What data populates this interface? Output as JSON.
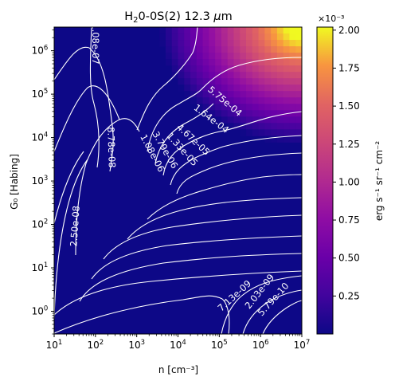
{
  "chart_data": {
    "type": "heatmap",
    "title": "H₂O-0S(2) 12.3 μm",
    "title_prefix": "H",
    "title_sub": "2",
    "title_suffix": "0-0S(2) 12.3 ",
    "title_mu": "μ",
    "title_unit": "m",
    "xlabel": "n [cm⁻³]",
    "ylabel": "G₀ [Habing]",
    "x_scale": "log",
    "y_scale": "log",
    "xlim": [
      10,
      10000000
    ],
    "ylim": [
      0.3,
      3500000
    ],
    "x_ticks": [
      {
        "value": 10,
        "base": "10",
        "exp": "1"
      },
      {
        "value": 100,
        "base": "10",
        "exp": "2"
      },
      {
        "value": 1000,
        "base": "10",
        "exp": "3"
      },
      {
        "value": 10000,
        "base": "10",
        "exp": "4"
      },
      {
        "value": 100000,
        "base": "10",
        "exp": "5"
      },
      {
        "value": 1000000,
        "base": "10",
        "exp": "6"
      },
      {
        "value": 10000000,
        "base": "10",
        "exp": "7"
      }
    ],
    "y_ticks": [
      {
        "value": 1,
        "base": "10",
        "exp": "0"
      },
      {
        "value": 10,
        "base": "10",
        "exp": "1"
      },
      {
        "value": 100,
        "base": "10",
        "exp": "2"
      },
      {
        "value": 1000,
        "base": "10",
        "exp": "3"
      },
      {
        "value": 10000,
        "base": "10",
        "exp": "4"
      },
      {
        "value": 100000,
        "base": "10",
        "exp": "5"
      },
      {
        "value": 1000000,
        "base": "10",
        "exp": "6"
      }
    ],
    "colorbar": {
      "label": "erg s⁻¹ sr⁻¹ cm⁻²",
      "multiplier": "×10⁻³",
      "cmap": "plasma",
      "vmin": 0.0,
      "vmax": 2.02,
      "ticks": [
        "0.25",
        "0.50",
        "0.75",
        "1.00",
        "1.25",
        "1.50",
        "1.75",
        "2.00"
      ]
    },
    "contour_labels": [
      "1.08e-07",
      "8.78e-08",
      "2.50e-08",
      "1.08e-06",
      "3.79e-06",
      "1.33e-05",
      "4.67e-05",
      "1.64e-04",
      "5.75e-04",
      "7.13e-09",
      "2.03e-09",
      "5.79e-10"
    ]
  }
}
